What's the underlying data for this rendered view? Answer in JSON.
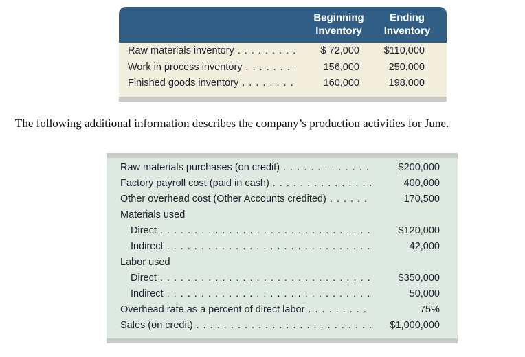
{
  "paragraph": "The following additional information describes the company’s production activities for June.",
  "colors": {
    "header_bg": "#305e85",
    "header_text": "#ffffff",
    "inventory_body_bg": "#f2eede",
    "production_body_bg": "#dee9e1",
    "shadow_strip": "#c9cbc7",
    "table_text": "#1d212b"
  },
  "inventory_table": {
    "columns": [
      {
        "label": "Beginning\nInventory"
      },
      {
        "label": "Ending\nInventory"
      }
    ],
    "rows": [
      {
        "label": "Raw materials inventory",
        "beginning": "$ 72,000",
        "ending": "$110,000"
      },
      {
        "label": "Work in process inventory",
        "beginning": "156,000",
        "ending": "250,000"
      },
      {
        "label": "Finished goods inventory",
        "beginning": "160,000",
        "ending": "198,000"
      }
    ]
  },
  "production_table": {
    "rows": [
      {
        "label": "Raw materials purchases (on credit)",
        "value": "$200,000"
      },
      {
        "label": "Factory payroll cost (paid in cash)",
        "value": "400,000"
      },
      {
        "label": "Other overhead cost (Other Accounts credited)",
        "value": "170,500"
      },
      {
        "label": "Materials used",
        "value": ""
      },
      {
        "label": "Direct",
        "value": "$120,000"
      },
      {
        "label": "Indirect",
        "value": "42,000"
      },
      {
        "label": "Labor used",
        "value": ""
      },
      {
        "label": "Direct",
        "value": "$350,000"
      },
      {
        "label": "Indirect",
        "value": "50,000"
      },
      {
        "label": "Overhead rate as a percent of direct labor",
        "value": "75%"
      },
      {
        "label": "Sales (on credit)",
        "value": "$1,000,000"
      }
    ]
  }
}
